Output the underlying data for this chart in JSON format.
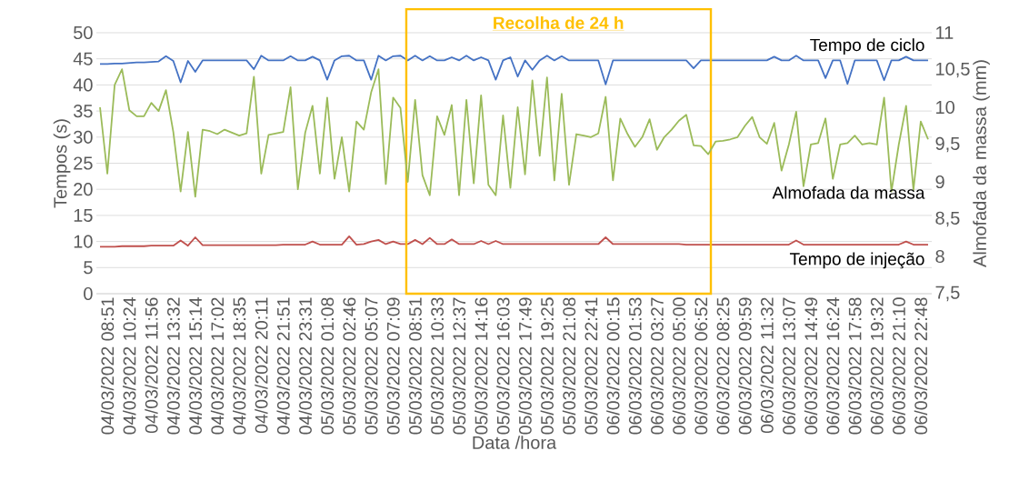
{
  "chart_data": {
    "type": "line",
    "xlabel": "Data /hora",
    "ylabel": "Tempos (s)",
    "y2label": "Almofada da massa (mm)",
    "categories": [
      null,
      "04/03/2022 08:51",
      null,
      null,
      "04/03/2022 10:24",
      null,
      null,
      "04/03/2022 11:56",
      null,
      null,
      "04/03/2022 13:32",
      null,
      null,
      "04/03/2022 15:14",
      null,
      null,
      "04/03/2022 17:02",
      null,
      null,
      "04/03/2022 18:35",
      null,
      null,
      "04/03/2022 20:11",
      null,
      null,
      "04/03/2022 21:51",
      null,
      null,
      "04/03/2022 23:31",
      null,
      null,
      "05/03/2022 01:08",
      null,
      null,
      "05/03/2022 02:46",
      null,
      null,
      "05/03/2022 05:07",
      null,
      null,
      "05/03/2022 07:09",
      null,
      null,
      "05/03/2022 08:51",
      null,
      null,
      "05/03/2022 10:33",
      null,
      null,
      "05/03/2022 12:37",
      null,
      null,
      "05/03/2022 14:16",
      null,
      null,
      "05/03/2022 16:03",
      null,
      null,
      "05/03/2022 17:49",
      null,
      null,
      "05/03/2022 19:25",
      null,
      null,
      "05/03/2022 21:08",
      null,
      null,
      "05/03/2022 22:41",
      null,
      null,
      "06/03/2022 00:15",
      null,
      null,
      "06/03/2022 01:53",
      null,
      null,
      "06/03/2022 03:27",
      null,
      null,
      "06/03/2022 05:00",
      null,
      null,
      "06/03/2022 06:52",
      null,
      null,
      "06/03/2022 08:25",
      null,
      null,
      "06/03/2022 09:59",
      null,
      null,
      "06/03/2022 11:32",
      null,
      null,
      "06/03/2022 13:07",
      null,
      null,
      "06/03/2022 14:49",
      null,
      null,
      "06/03/2022 16:24",
      null,
      null,
      "06/03/2022 17:58",
      null,
      null,
      "06/03/2022 19:32",
      null,
      null,
      "06/03/2022 21:10",
      null,
      null,
      "06/03/2022 22:48",
      null
    ],
    "series": [
      {
        "name": "Tempo de ciclo",
        "color": "#4472c4",
        "values": [
          44.0,
          44.0,
          44.1,
          44.1,
          44.2,
          44.3,
          44.3,
          44.4,
          44.5,
          45.5,
          44.6,
          40.5,
          44.6,
          42.5,
          44.7,
          44.7,
          44.7,
          44.7,
          44.7,
          44.7,
          44.7,
          43.0,
          45.6,
          44.7,
          44.7,
          44.7,
          45.5,
          44.7,
          44.7,
          45.4,
          44.7,
          41.0,
          44.7,
          45.5,
          45.6,
          44.7,
          44.7,
          41.0,
          45.6,
          44.7,
          45.5,
          45.6,
          44.7,
          45.6,
          44.7,
          45.5,
          44.7,
          44.7,
          45.3,
          44.7,
          45.6,
          44.7,
          45.3,
          44.7,
          41.0,
          44.7,
          45.3,
          41.6,
          44.7,
          42.9,
          44.7,
          45.6,
          44.7,
          45.5,
          44.7,
          44.7,
          44.7,
          44.7,
          44.7,
          40.1,
          44.7,
          44.7,
          44.7,
          44.7,
          44.7,
          44.7,
          44.7,
          44.7,
          44.7,
          44.7,
          44.7,
          43.2,
          44.7,
          44.7,
          44.7,
          44.7,
          44.7,
          44.7,
          44.7,
          44.7,
          44.7,
          44.7,
          45.4,
          44.7,
          44.7,
          45.6,
          44.7,
          44.7,
          44.7,
          41.3,
          44.7,
          44.7,
          40.2,
          44.7,
          44.7,
          44.7,
          44.7,
          40.9,
          44.7,
          44.7,
          45.4,
          44.7,
          44.7,
          44.7
        ]
      },
      {
        "name": "Almofada da massa",
        "color": "#9bbb59",
        "axis": "y2",
        "values": [
          10.0,
          9.11,
          10.3,
          10.51,
          9.96,
          9.88,
          9.88,
          10.06,
          9.95,
          10.23,
          9.67,
          8.87,
          9.67,
          8.8,
          9.7,
          9.68,
          9.64,
          9.7,
          9.66,
          9.62,
          9.65,
          10.41,
          9.11,
          9.63,
          9.65,
          9.67,
          10.27,
          8.9,
          9.66,
          10.02,
          9.11,
          10.13,
          9.04,
          9.6,
          8.87,
          9.81,
          9.7,
          10.2,
          10.51,
          8.97,
          10.13,
          9.99,
          9.0,
          10.1,
          9.09,
          8.82,
          9.88,
          9.63,
          10.03,
          8.82,
          10.1,
          8.98,
          10.16,
          8.96,
          8.82,
          9.89,
          8.92,
          10.0,
          9.1,
          10.36,
          9.35,
          10.4,
          9.02,
          10.18,
          8.96,
          9.64,
          9.62,
          9.6,
          9.65,
          10.14,
          9.02,
          9.85,
          9.64,
          9.47,
          9.6,
          9.84,
          9.43,
          9.6,
          9.7,
          9.82,
          9.9,
          9.49,
          9.48,
          9.37,
          9.54,
          9.55,
          9.57,
          9.6,
          9.75,
          9.87,
          9.6,
          9.51,
          9.79,
          9.15,
          9.5,
          9.94,
          8.94,
          9.5,
          9.52,
          9.85,
          9.04,
          9.5,
          9.52,
          9.62,
          9.5,
          9.52,
          9.5,
          10.13,
          8.87,
          9.5,
          10.02,
          8.89,
          9.81,
          9.57
        ]
      },
      {
        "name": "Tempo de injeção",
        "color": "#c0504d",
        "values": [
          9.0,
          9.0,
          9.0,
          9.1,
          9.1,
          9.1,
          9.1,
          9.2,
          9.2,
          9.2,
          9.2,
          10.2,
          9.2,
          10.8,
          9.3,
          9.3,
          9.3,
          9.3,
          9.3,
          9.3,
          9.3,
          9.3,
          9.3,
          9.3,
          9.3,
          9.4,
          9.4,
          9.4,
          9.4,
          10.0,
          9.4,
          9.4,
          9.4,
          9.4,
          11.0,
          9.4,
          9.5,
          10.0,
          10.3,
          9.5,
          10.0,
          9.5,
          9.5,
          10.3,
          9.5,
          10.7,
          9.5,
          9.5,
          10.4,
          9.5,
          9.5,
          9.5,
          10.1,
          9.5,
          10.1,
          9.5,
          9.5,
          9.5,
          9.5,
          9.5,
          9.5,
          9.5,
          9.5,
          9.5,
          9.5,
          9.5,
          9.5,
          9.5,
          9.5,
          10.8,
          9.5,
          9.5,
          9.5,
          9.5,
          9.5,
          9.5,
          9.5,
          9.5,
          9.5,
          9.5,
          9.4,
          9.4,
          9.4,
          9.4,
          9.4,
          9.4,
          9.4,
          9.4,
          9.4,
          9.4,
          9.4,
          9.4,
          9.4,
          9.4,
          9.4,
          10.2,
          9.4,
          9.4,
          9.4,
          9.4,
          9.4,
          9.4,
          9.4,
          9.4,
          9.4,
          9.4,
          9.4,
          9.4,
          9.4,
          9.4,
          10.0,
          9.4,
          9.4,
          9.4
        ]
      }
    ],
    "ylim": [
      0,
      50
    ],
    "yticks": [
      0,
      5,
      10,
      15,
      20,
      25,
      30,
      35,
      40,
      45,
      50
    ],
    "y2lim": [
      7.5,
      11
    ],
    "y2ticks": [
      {
        "value": 7.5,
        "label": "7,5"
      },
      8,
      {
        "value": 8.5,
        "label": "8,5"
      },
      9,
      {
        "value": 9.5,
        "label": "9,5"
      },
      10,
      {
        "value": 10.5,
        "label": "10,5"
      },
      11
    ],
    "grid": "y",
    "annotations": [
      "Recolha de 24 h"
    ]
  }
}
